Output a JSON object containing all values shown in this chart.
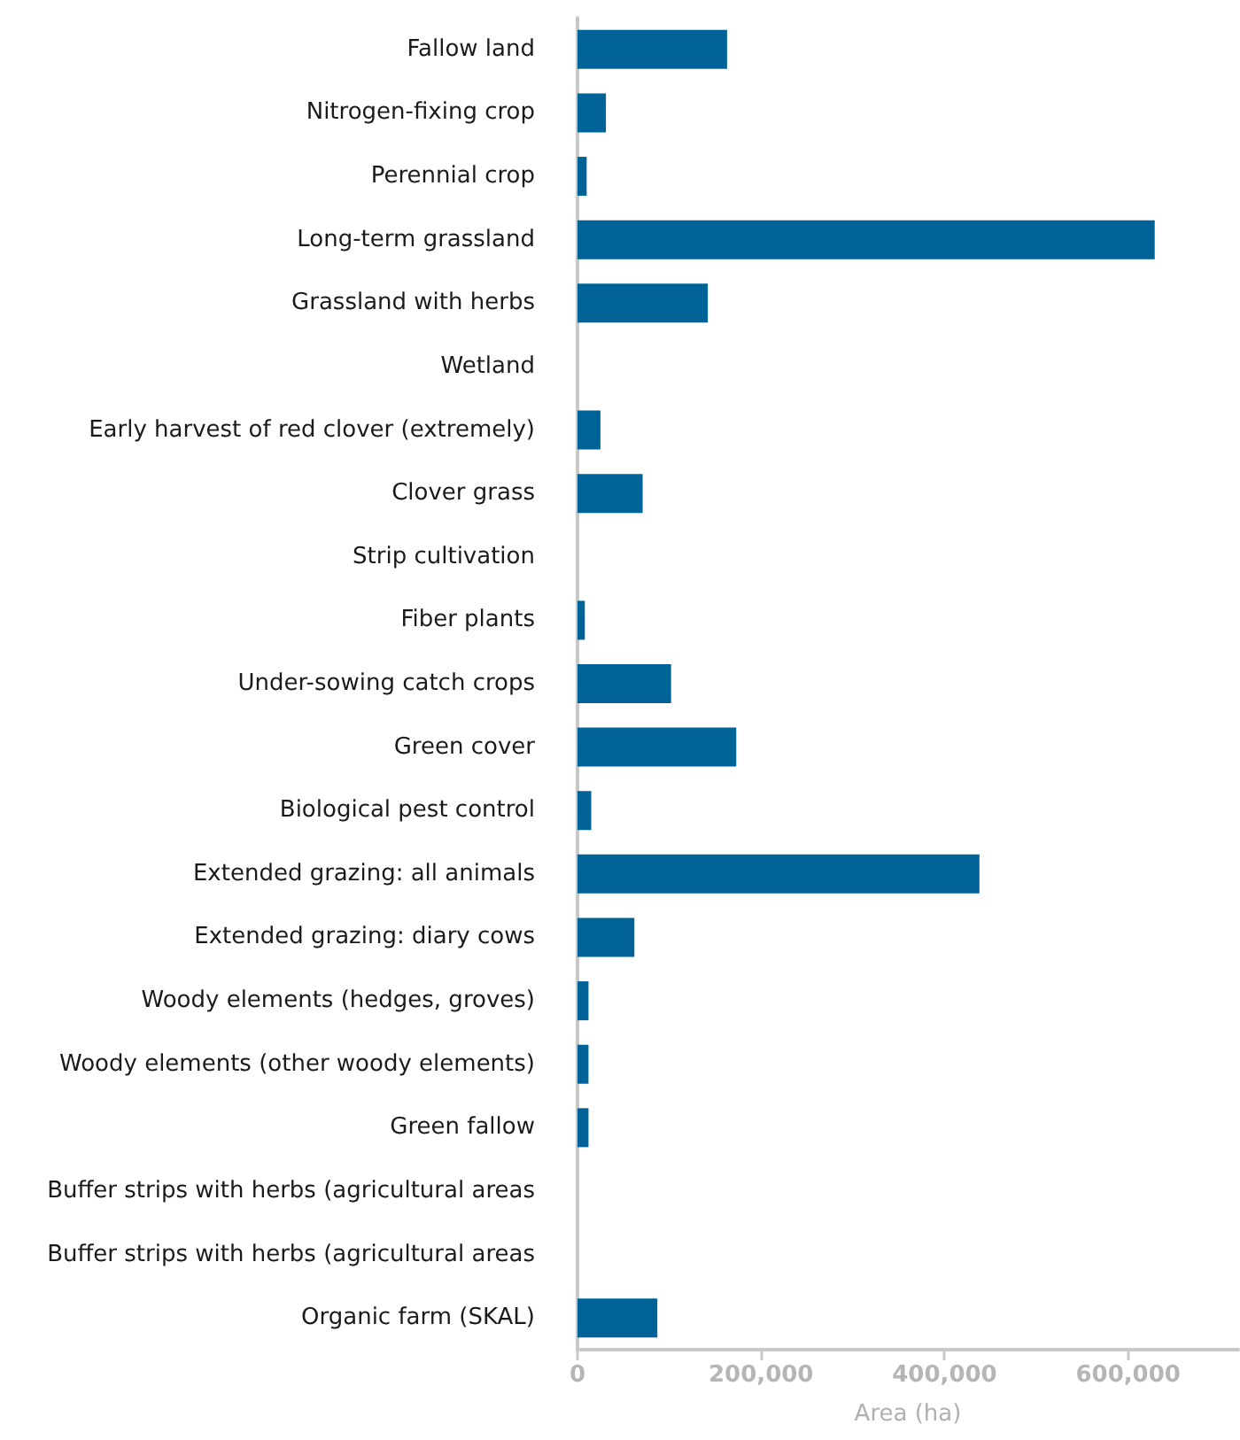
{
  "chart_data": {
    "type": "bar",
    "orientation": "horizontal",
    "xlabel": "Area (ha)",
    "categories": [
      "Fallow land",
      "Nitrogen-fixing crop",
      "Perennial crop",
      "Long-term grassland",
      "Grassland with herbs",
      "Wetland",
      "Early harvest of red clover (extremely)",
      "Clover grass",
      "Strip cultivation",
      "Fiber plants",
      "Under-sowing catch crops",
      "Green cover",
      "Biological pest control",
      "Extended grazing: all animals",
      "Extended grazing: diary cows",
      "Woody elements (hedges, groves)",
      "Woody elements (other woody elements)",
      "Green fallow",
      "Buffer strips with herbs (agricultural areas",
      "Buffer strips with herbs (agricultural areas",
      "Organic farm (SKAL)"
    ],
    "values": [
      163000,
      31000,
      10000,
      629000,
      142000,
      0,
      25000,
      71000,
      0,
      8000,
      102000,
      173000,
      15000,
      438000,
      62000,
      12000,
      12000,
      12000,
      0,
      0,
      87000
    ],
    "color": "#006398",
    "xlim": [
      0,
      720000
    ],
    "xticks": [
      0,
      {
        "value": 200000,
        "label": "200,000"
      },
      {
        "value": 400000,
        "label": "400,000"
      },
      {
        "value": 600000,
        "label": "600,000"
      }
    ],
    "grid": false
  }
}
